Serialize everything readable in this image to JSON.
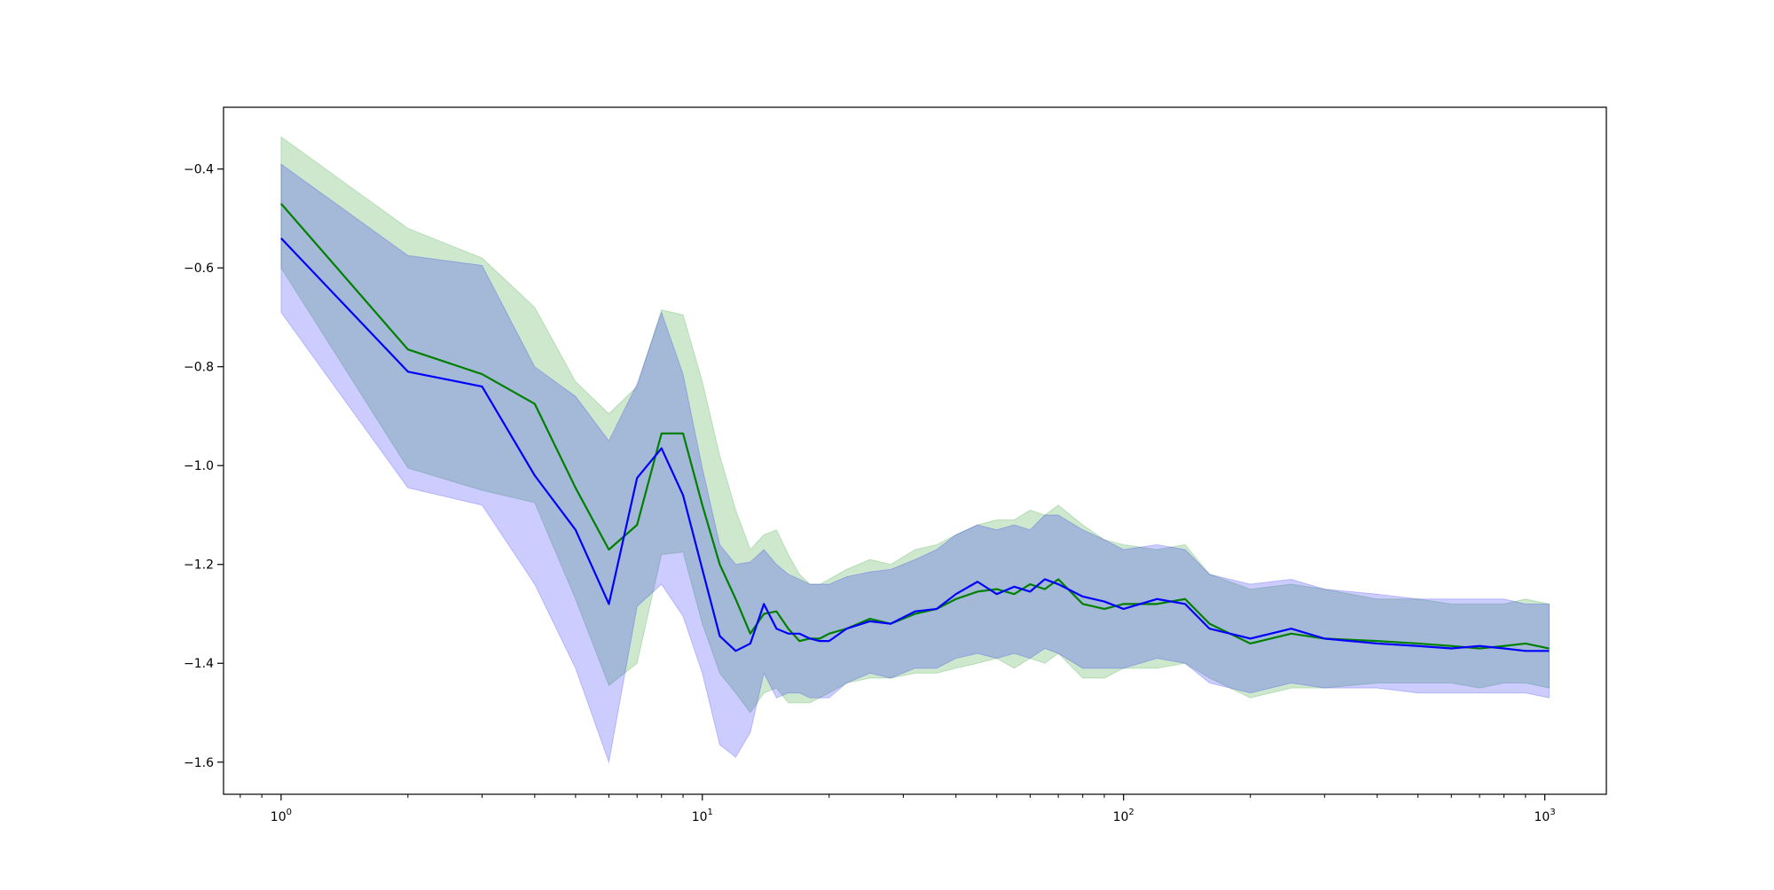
{
  "chart_data": {
    "type": "line",
    "title": "",
    "xlabel": "",
    "ylabel": "",
    "xscale": "log",
    "xlim": [
      0.73,
      1400
    ],
    "ylim": [
      -1.665,
      -0.275
    ],
    "grid": false,
    "legend": "none",
    "x_ticks": [
      {
        "value": 1,
        "base": "10",
        "exp": "0"
      },
      {
        "value": 10,
        "base": "10",
        "exp": "1"
      },
      {
        "value": 100,
        "base": "10",
        "exp": "2"
      },
      {
        "value": 1000,
        "base": "10",
        "exp": "3"
      }
    ],
    "y_ticks": [
      {
        "value": -0.4,
        "label": "−0.4"
      },
      {
        "value": -0.6,
        "label": "−0.6"
      },
      {
        "value": -0.8,
        "label": "−0.8"
      },
      {
        "value": -1.0,
        "label": "−1.0"
      },
      {
        "value": -1.2,
        "label": "−1.2"
      },
      {
        "value": -1.4,
        "label": "−1.4"
      },
      {
        "value": -1.6,
        "label": "−1.6"
      }
    ],
    "series": [
      {
        "color": "#008000",
        "band_color": "#2ca02c",
        "band_opacity": 0.24,
        "x": [
          1,
          2,
          3,
          4,
          5,
          6,
          7,
          8,
          9,
          10,
          11,
          12,
          13,
          14,
          15,
          16,
          17,
          18,
          19,
          20,
          22,
          25,
          28,
          32,
          36,
          40,
          45,
          50,
          55,
          60,
          65,
          70,
          80,
          90,
          100,
          120,
          140,
          160,
          200,
          250,
          300,
          400,
          500,
          600,
          700,
          800,
          900,
          1024
        ],
        "mean": [
          -0.47,
          -0.765,
          -0.815,
          -0.875,
          -1.045,
          -1.17,
          -1.12,
          -0.935,
          -0.935,
          -1.08,
          -1.2,
          -1.27,
          -1.34,
          -1.3,
          -1.295,
          -1.33,
          -1.355,
          -1.35,
          -1.35,
          -1.34,
          -1.33,
          -1.31,
          -1.32,
          -1.3,
          -1.29,
          -1.27,
          -1.255,
          -1.25,
          -1.26,
          -1.24,
          -1.25,
          -1.23,
          -1.28,
          -1.29,
          -1.28,
          -1.28,
          -1.27,
          -1.32,
          -1.36,
          -1.34,
          -1.35,
          -1.355,
          -1.36,
          -1.365,
          -1.37,
          -1.365,
          -1.36,
          -1.37
        ],
        "upper": [
          -0.335,
          -0.52,
          -0.58,
          -0.68,
          -0.83,
          -0.895,
          -0.84,
          -0.685,
          -0.695,
          -0.83,
          -0.98,
          -1.09,
          -1.17,
          -1.14,
          -1.13,
          -1.18,
          -1.22,
          -1.24,
          -1.24,
          -1.23,
          -1.21,
          -1.19,
          -1.2,
          -1.17,
          -1.16,
          -1.14,
          -1.12,
          -1.11,
          -1.11,
          -1.09,
          -1.1,
          -1.08,
          -1.12,
          -1.15,
          -1.16,
          -1.17,
          -1.16,
          -1.22,
          -1.25,
          -1.24,
          -1.25,
          -1.27,
          -1.27,
          -1.28,
          -1.28,
          -1.28,
          -1.27,
          -1.28
        ],
        "lower": [
          -0.6,
          -1.005,
          -1.05,
          -1.075,
          -1.27,
          -1.445,
          -1.4,
          -1.18,
          -1.175,
          -1.32,
          -1.42,
          -1.46,
          -1.5,
          -1.46,
          -1.45,
          -1.48,
          -1.48,
          -1.48,
          -1.47,
          -1.46,
          -1.44,
          -1.43,
          -1.43,
          -1.42,
          -1.42,
          -1.41,
          -1.4,
          -1.39,
          -1.41,
          -1.39,
          -1.4,
          -1.38,
          -1.43,
          -1.43,
          -1.41,
          -1.41,
          -1.4,
          -1.43,
          -1.47,
          -1.45,
          -1.45,
          -1.44,
          -1.44,
          -1.44,
          -1.45,
          -1.44,
          -1.44,
          -1.45
        ]
      },
      {
        "color": "#0000ff",
        "band_color": "#0000ff",
        "band_opacity": 0.2,
        "x": [
          1,
          2,
          3,
          4,
          5,
          6,
          7,
          8,
          9,
          10,
          11,
          12,
          13,
          14,
          15,
          16,
          17,
          18,
          19,
          20,
          22,
          25,
          28,
          32,
          36,
          40,
          45,
          50,
          55,
          60,
          65,
          70,
          80,
          90,
          100,
          120,
          140,
          160,
          200,
          250,
          300,
          400,
          500,
          600,
          700,
          800,
          900,
          1024
        ],
        "mean": [
          -0.54,
          -0.81,
          -0.84,
          -1.02,
          -1.13,
          -1.28,
          -1.025,
          -0.965,
          -1.06,
          -1.21,
          -1.345,
          -1.375,
          -1.36,
          -1.28,
          -1.33,
          -1.34,
          -1.34,
          -1.35,
          -1.355,
          -1.355,
          -1.33,
          -1.315,
          -1.32,
          -1.295,
          -1.29,
          -1.26,
          -1.235,
          -1.26,
          -1.245,
          -1.255,
          -1.23,
          -1.24,
          -1.265,
          -1.275,
          -1.29,
          -1.27,
          -1.28,
          -1.33,
          -1.35,
          -1.33,
          -1.35,
          -1.36,
          -1.365,
          -1.37,
          -1.365,
          -1.37,
          -1.375,
          -1.375
        ],
        "upper": [
          -0.39,
          -0.575,
          -0.595,
          -0.8,
          -0.86,
          -0.95,
          -0.835,
          -0.69,
          -0.815,
          -1.005,
          -1.16,
          -1.2,
          -1.195,
          -1.17,
          -1.2,
          -1.22,
          -1.23,
          -1.24,
          -1.24,
          -1.24,
          -1.225,
          -1.215,
          -1.21,
          -1.19,
          -1.17,
          -1.14,
          -1.12,
          -1.13,
          -1.12,
          -1.13,
          -1.1,
          -1.1,
          -1.13,
          -1.15,
          -1.17,
          -1.16,
          -1.17,
          -1.22,
          -1.24,
          -1.23,
          -1.25,
          -1.26,
          -1.27,
          -1.27,
          -1.27,
          -1.27,
          -1.28,
          -1.28
        ],
        "lower": [
          -0.69,
          -1.045,
          -1.08,
          -1.24,
          -1.41,
          -1.6,
          -1.285,
          -1.24,
          -1.305,
          -1.42,
          -1.565,
          -1.59,
          -1.54,
          -1.42,
          -1.47,
          -1.46,
          -1.46,
          -1.47,
          -1.47,
          -1.47,
          -1.44,
          -1.42,
          -1.43,
          -1.41,
          -1.41,
          -1.39,
          -1.38,
          -1.39,
          -1.38,
          -1.39,
          -1.37,
          -1.38,
          -1.41,
          -1.41,
          -1.41,
          -1.39,
          -1.4,
          -1.44,
          -1.46,
          -1.44,
          -1.45,
          -1.45,
          -1.46,
          -1.46,
          -1.46,
          -1.46,
          -1.46,
          -1.47
        ]
      }
    ]
  }
}
